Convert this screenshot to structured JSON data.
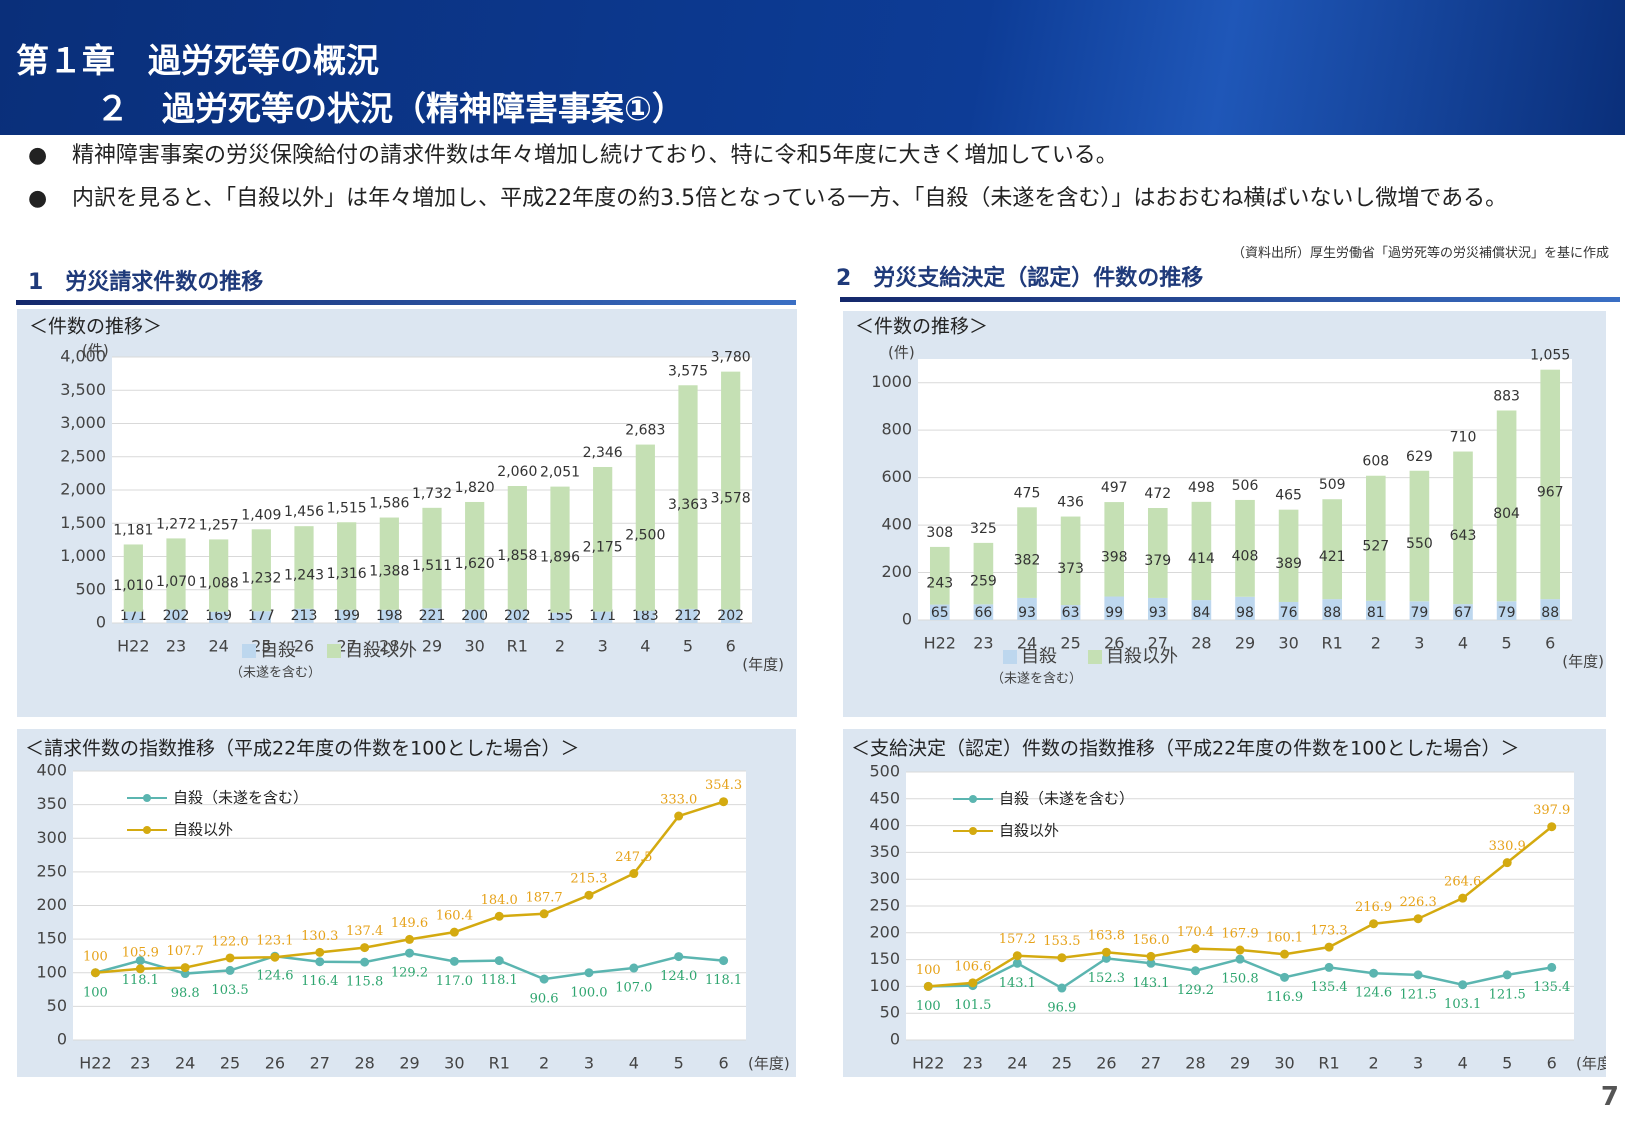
{
  "header": {
    "title": "第１章　過労死等の概況",
    "subtitle": "２　過労死等の状況（精神障害事案①）"
  },
  "bullets": [
    "精神障害事案の労災保険給付の請求件数は年々増加し続けており、特に令和5年度に大きく増加している。",
    "内訳を見ると、「自殺以外」は年々増加し、平成22年度の約3.5倍となっている一方、「自殺（未遂を含む）」はおおむね横ばいないし微増である。"
  ],
  "bullet_symbol": "●",
  "source": "（資料出所）厚生労働省「過労死等の労災補償状況」を基に作成",
  "page_number": "7",
  "chart_data": [
    {
      "type": "stacked_bar",
      "title": "1　労災請求件数の推移",
      "subtitle": "＜件数の推移＞",
      "y_unit": "(件)",
      "x_unit": "(年度)",
      "categories": [
        "H22",
        "23",
        "24",
        "25",
        "26",
        "27",
        "28",
        "29",
        "30",
        "R1",
        "2",
        "3",
        "4",
        "5",
        "6"
      ],
      "series": [
        {
          "name": "自殺",
          "note": "（未遂を含む）",
          "color": "#bdd7ee",
          "values": [
            171,
            202,
            169,
            177,
            213,
            199,
            198,
            221,
            200,
            202,
            155,
            171,
            183,
            212,
            202
          ]
        },
        {
          "name": "自殺以外",
          "color": "#c5e0b4",
          "values": [
            1010,
            1070,
            1088,
            1232,
            1243,
            1316,
            1388,
            1511,
            1620,
            1858,
            1896,
            2175,
            2500,
            3363,
            3578
          ],
          "value_labels": [
            "1,010",
            "1,070",
            "1,088",
            "1,232",
            "1,243",
            "1,316",
            "1,388",
            "1,511",
            "1,620",
            "1,858",
            "1,896",
            "2,175",
            "2,500",
            "3,363",
            "3,578"
          ]
        }
      ],
      "totals": [
        1181,
        1272,
        1257,
        1409,
        1456,
        1515,
        1586,
        1732,
        1820,
        2060,
        2051,
        2346,
        2683,
        3575,
        3780
      ],
      "total_labels": [
        "1,181",
        "1,272",
        "1,257",
        "1,409",
        "1,456",
        "1,515",
        "1,586",
        "1,732",
        "1,820",
        "2,060",
        "2,051",
        "2,346",
        "2,683",
        "3,575",
        "3,780"
      ],
      "ylim": [
        0,
        4000
      ],
      "yticks": [
        0,
        500,
        {
          "value": 1000,
          "label": "1,000"
        },
        {
          "value": 1500,
          "label": "1,500"
        },
        {
          "value": 2000,
          "label": "2,000"
        },
        {
          "value": 2500,
          "label": "2,500"
        },
        {
          "value": 3000,
          "label": "3,000"
        },
        {
          "value": 3500,
          "label": "3,500"
        },
        {
          "value": 4000,
          "label": "4,000"
        }
      ],
      "grid": true
    },
    {
      "type": "stacked_bar",
      "title": "2　労災支給決定（認定）件数の推移",
      "subtitle": "＜件数の推移＞",
      "y_unit": "(件)",
      "x_unit": "(年度)",
      "categories": [
        "H22",
        "23",
        "24",
        "25",
        "26",
        "27",
        "28",
        "29",
        "30",
        "R1",
        "2",
        "3",
        "4",
        "5",
        "6"
      ],
      "series": [
        {
          "name": "自殺",
          "note": "（未遂を含む）",
          "color": "#bdd7ee",
          "values": [
            65,
            66,
            93,
            63,
            99,
            93,
            84,
            98,
            76,
            88,
            81,
            79,
            67,
            79,
            88
          ]
        },
        {
          "name": "自殺以外",
          "color": "#c5e0b4",
          "values": [
            243,
            259,
            382,
            373,
            398,
            379,
            414,
            408,
            389,
            421,
            527,
            550,
            643,
            804,
            967
          ]
        }
      ],
      "totals": [
        308,
        325,
        475,
        436,
        497,
        472,
        498,
        506,
        465,
        509,
        608,
        629,
        710,
        883,
        1055
      ],
      "total_labels": [
        "308",
        "325",
        "475",
        "436",
        "497",
        "472",
        "498",
        "506",
        "465",
        "509",
        "608",
        "629",
        "710",
        "883",
        "1,055"
      ],
      "ylim": [
        0,
        1100
      ],
      "yticks": [
        0,
        200,
        400,
        600,
        800,
        1000
      ],
      "grid": true
    },
    {
      "type": "line",
      "subtitle": "＜請求件数の指数推移（平成22年度の件数を100とした場合）＞",
      "x_unit": "(年度)",
      "categories": [
        "H22",
        "23",
        "24",
        "25",
        "26",
        "27",
        "28",
        "29",
        "30",
        "R1",
        "2",
        "3",
        "4",
        "5",
        "6"
      ],
      "series": [
        {
          "name": "自殺（未遂を含む）",
          "color": "#5bb5b0",
          "label_color": "#2ea56f",
          "values": [
            100,
            118.1,
            98.8,
            103.5,
            124.6,
            116.4,
            115.8,
            129.2,
            117.0,
            118.1,
            90.6,
            100.0,
            107.0,
            124.0,
            118.1
          ],
          "value_labels": [
            "100",
            "118.1",
            "98.8",
            "103.5",
            "124.6",
            "116.4",
            "115.8",
            "129.2",
            "117.0",
            "118.1",
            "90.6",
            "100.0",
            "107.0",
            "124.0",
            "118.1"
          ]
        },
        {
          "name": "自殺以外",
          "color": "#d4aa10",
          "label_color": "#e6a21a",
          "values": [
            100,
            105.9,
            107.7,
            122.0,
            123.1,
            130.3,
            137.4,
            149.6,
            160.4,
            184.0,
            187.7,
            215.3,
            247.5,
            333.0,
            354.3
          ],
          "value_labels": [
            "100",
            "105.9",
            "107.7",
            "122.0",
            "123.1",
            "130.3",
            "137.4",
            "149.6",
            "160.4",
            "184.0",
            "187.7",
            "215.3",
            "247.5",
            "333.0",
            "354.3"
          ]
        }
      ],
      "ylim": [
        0,
        400
      ],
      "yticks": [
        0,
        50,
        100,
        150,
        200,
        250,
        300,
        350,
        400
      ],
      "grid": true
    },
    {
      "type": "line",
      "subtitle": "＜支給決定（認定）件数の指数推移（平成22年度の件数を100とした場合）＞",
      "x_unit": "(年度)",
      "categories": [
        "H22",
        "23",
        "24",
        "25",
        "26",
        "27",
        "28",
        "29",
        "30",
        "R1",
        "2",
        "3",
        "4",
        "5",
        "6"
      ],
      "series": [
        {
          "name": "自殺（未遂を含む）",
          "color": "#5bb5b0",
          "label_color": "#2ea56f",
          "values": [
            100,
            101.5,
            143.1,
            96.9,
            152.3,
            143.1,
            129.2,
            150.8,
            116.9,
            135.4,
            124.6,
            121.5,
            103.1,
            121.5,
            135.4
          ],
          "value_labels": [
            "100",
            "101.5",
            "143.1",
            "96.9",
            "152.3",
            "143.1",
            "129.2",
            "150.8",
            "116.9",
            "135.4",
            "124.6",
            "121.5",
            "103.1",
            "121.5",
            "135.4"
          ]
        },
        {
          "name": "自殺以外",
          "color": "#d4aa10",
          "label_color": "#e6a21a",
          "values": [
            100,
            106.6,
            157.2,
            153.5,
            163.8,
            156.0,
            170.4,
            167.9,
            160.1,
            173.3,
            216.9,
            226.3,
            264.6,
            330.9,
            397.9
          ],
          "value_labels": [
            "100",
            "106.6",
            "157.2",
            "153.5",
            "163.8",
            "156.0",
            "170.4",
            "167.9",
            "160.1",
            "173.3",
            "216.9",
            "226.3",
            "264.6",
            "330.9",
            "397.9"
          ]
        }
      ],
      "ylim": [
        0,
        500
      ],
      "yticks": [
        0,
        50,
        100,
        150,
        200,
        250,
        300,
        350,
        400,
        450,
        500
      ],
      "grid": true
    }
  ]
}
